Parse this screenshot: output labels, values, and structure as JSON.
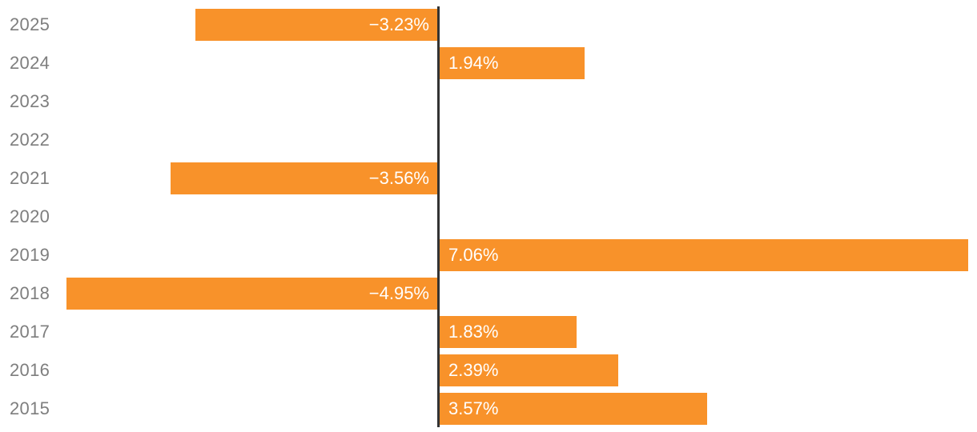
{
  "chart_data": {
    "type": "bar",
    "orientation": "horizontal",
    "title": "",
    "xlabel": "",
    "ylabel": "",
    "categories": [
      "2025",
      "2024",
      "2023",
      "2022",
      "2021",
      "2020",
      "2019",
      "2018",
      "2017",
      "2016",
      "2015"
    ],
    "values": [
      -3.23,
      1.94,
      null,
      null,
      -3.56,
      null,
      7.06,
      -4.95,
      1.83,
      2.39,
      3.57
    ],
    "value_labels": [
      "−3.23%",
      "1.94%",
      "",
      "",
      "−3.56%",
      "",
      "7.06%",
      "−4.95%",
      "1.83%",
      "2.39%",
      "3.57%"
    ],
    "unit": "%",
    "xlim": [
      -5.0,
      7.1
    ],
    "grid": false,
    "legend": "none",
    "baseline_at_zero": true,
    "bar_color": "#f8922a",
    "axis_line_color": "#333333",
    "category_label_color": "#7e7e7e",
    "value_label_color": "#ffffff"
  }
}
